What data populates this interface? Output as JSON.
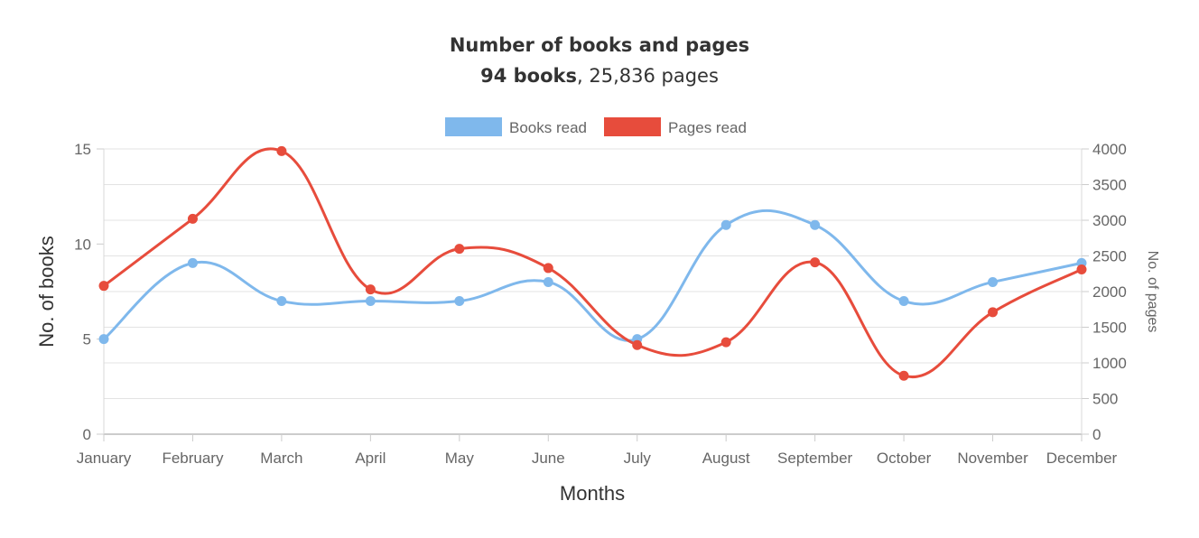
{
  "chart_data": {
    "type": "line",
    "title": "Number of books and pages",
    "subtitle": {
      "books": "94 books",
      "separator": ",",
      "pages": "25,836 pages"
    },
    "categories": [
      "January",
      "February",
      "March",
      "April",
      "May",
      "June",
      "July",
      "August",
      "September",
      "October",
      "November",
      "December"
    ],
    "xlabel": "Months",
    "ylabel": "No. of books",
    "y2label": "No. of pages",
    "ylim": [
      0,
      15
    ],
    "y2lim": [
      0,
      4000
    ],
    "yticks": [
      0,
      5,
      10,
      15
    ],
    "y2ticks": [
      0,
      500,
      1000,
      1500,
      2000,
      2500,
      3000,
      3500,
      4000
    ],
    "grid": true,
    "legend_position": "top",
    "series": [
      {
        "name": "Books read",
        "axis": "left",
        "color": "#7fb8ec",
        "values": [
          5,
          9,
          7,
          7,
          7,
          8,
          5,
          11,
          11,
          7,
          8,
          9
        ]
      },
      {
        "name": "Pages read",
        "axis": "right",
        "color": "#e74c3c",
        "values": [
          2080,
          3020,
          3970,
          2030,
          2600,
          2330,
          1250,
          1290,
          2410,
          820,
          1710,
          2310
        ]
      }
    ]
  }
}
